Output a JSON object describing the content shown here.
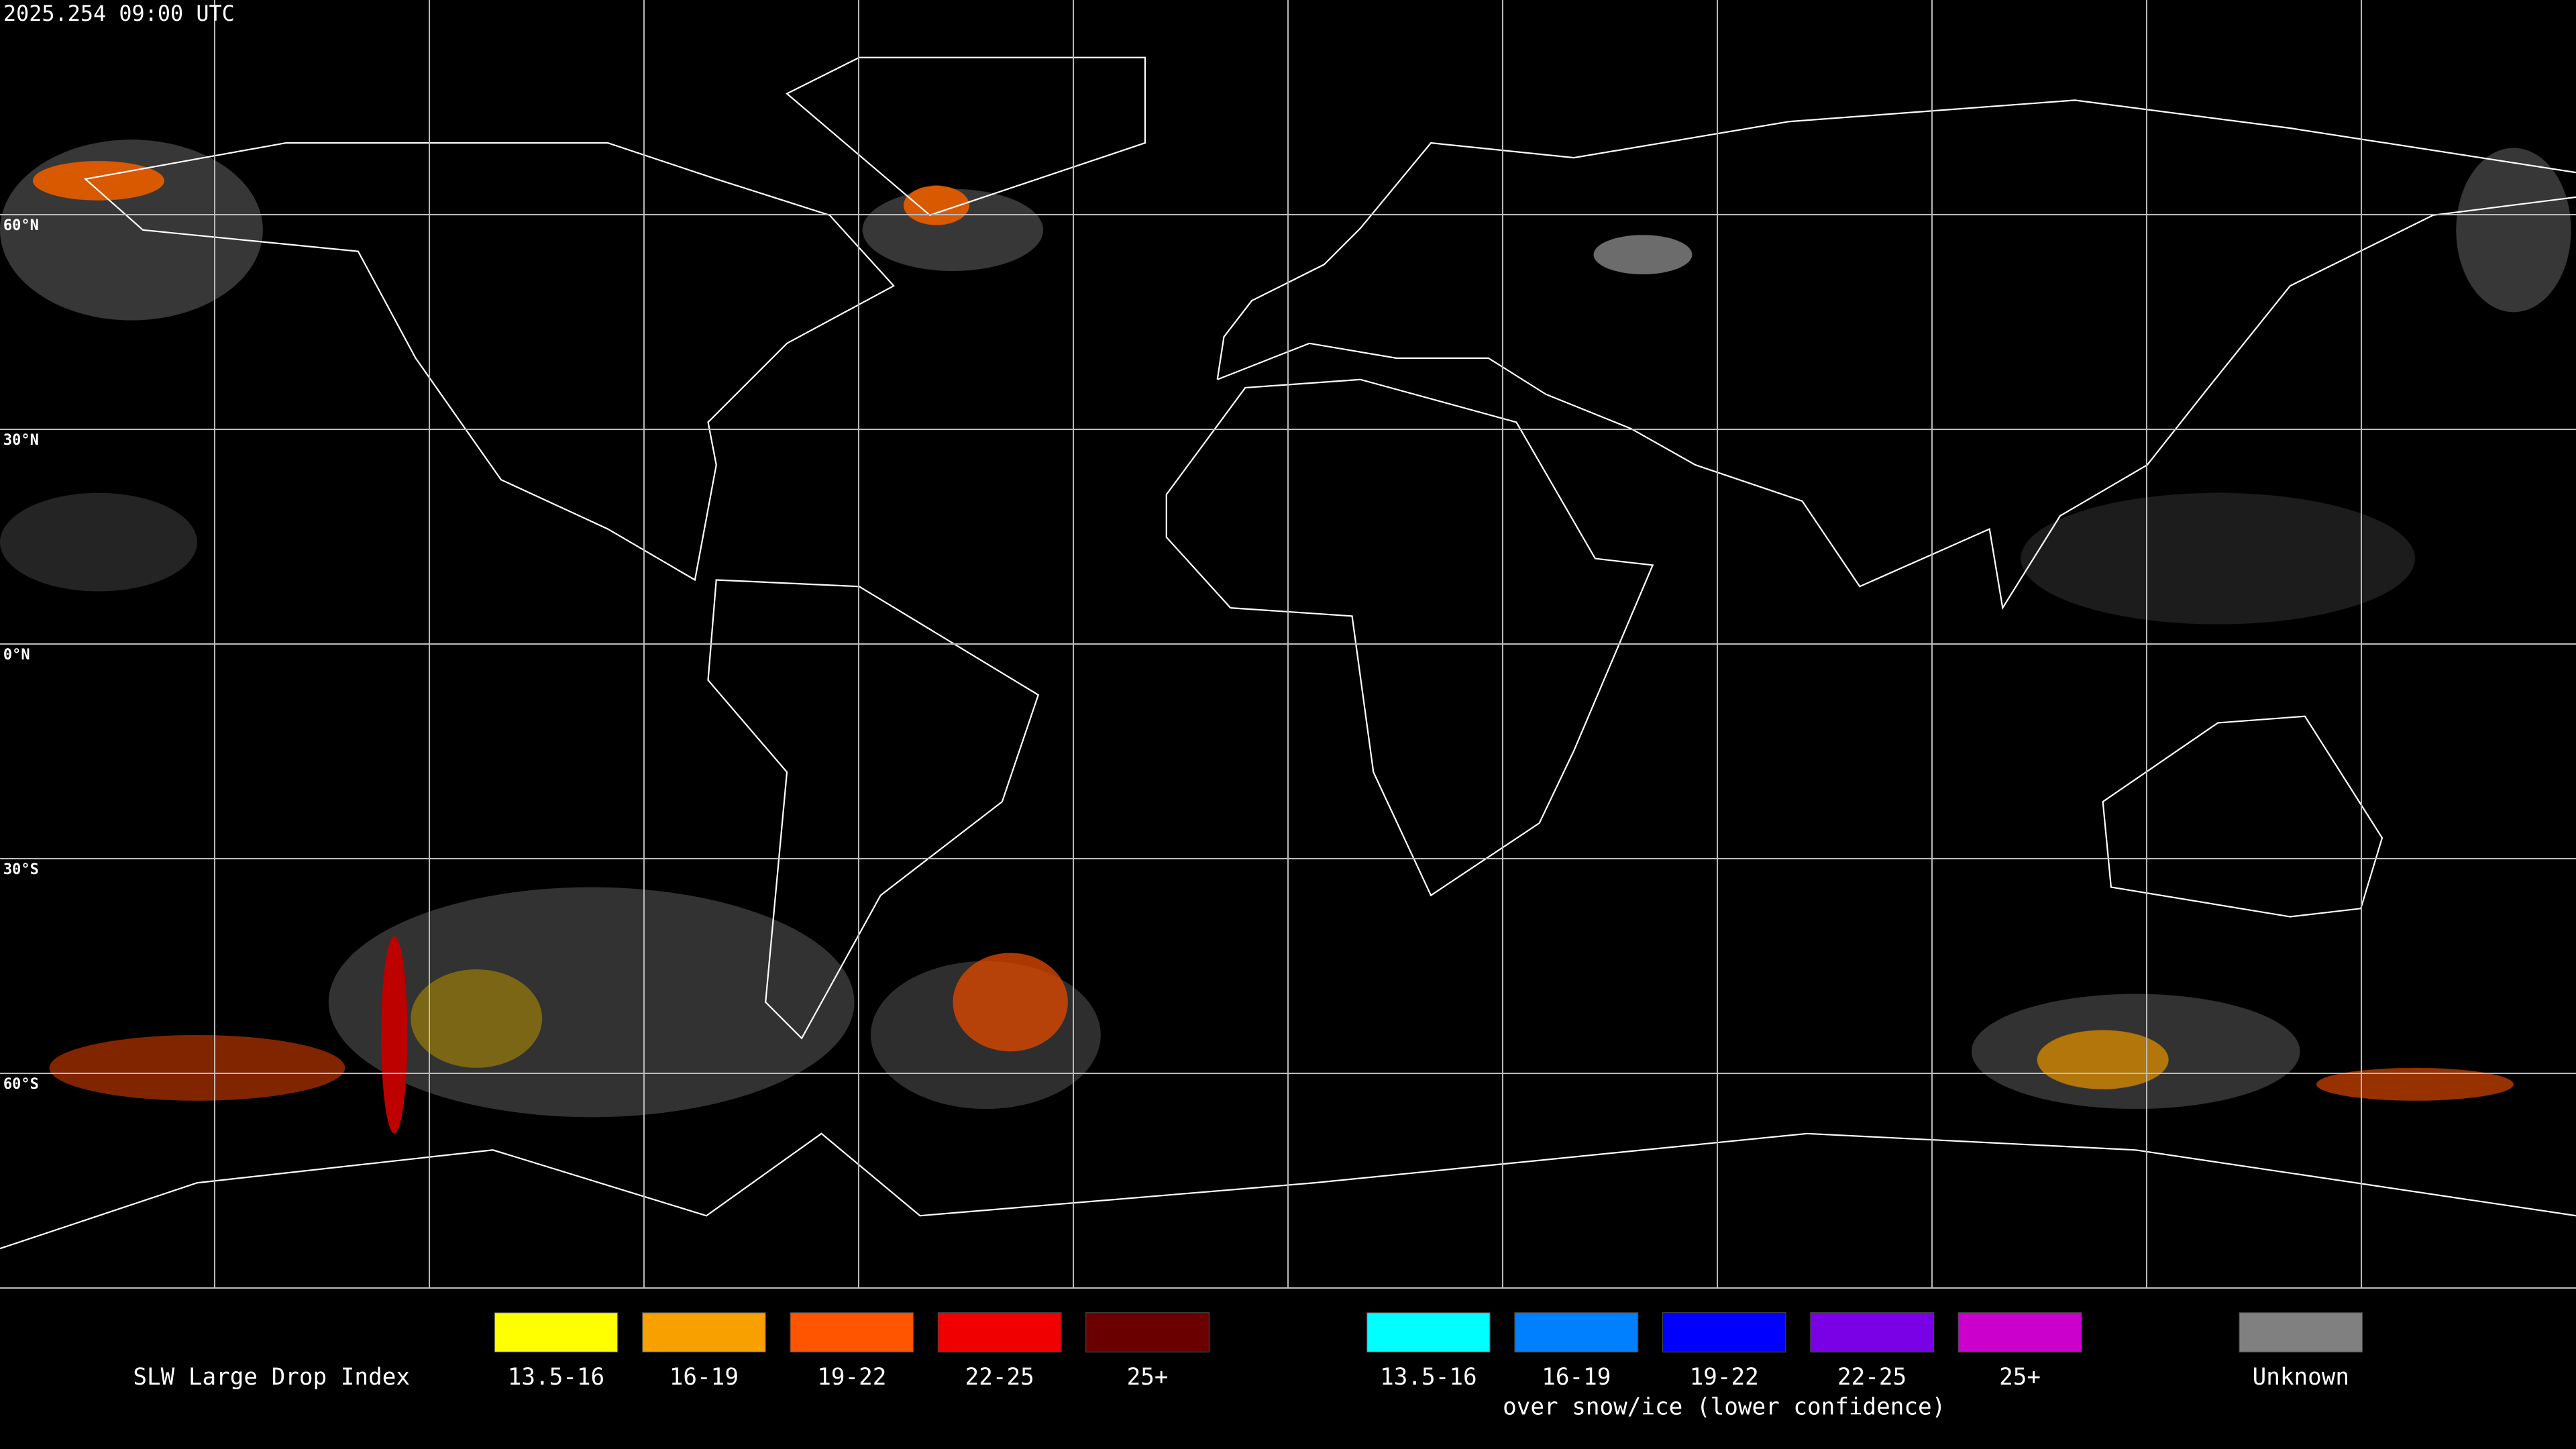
{
  "timestamp": "2025.254 09:00 UTC",
  "latitude_labels": [
    "60°N",
    "30°N",
    "0°N",
    "30°S",
    "60°S"
  ],
  "legend": {
    "title": "SLW Large Drop Index",
    "groups": [
      {
        "items": [
          {
            "label": "13.5-16",
            "color": "#ffff00"
          },
          {
            "label": "16-19",
            "color": "#f8a000"
          },
          {
            "label": "19-22",
            "color": "#ff5400"
          },
          {
            "label": "22-25",
            "color": "#f00000"
          },
          {
            "label": "25+",
            "color": "#6a0000"
          }
        ]
      },
      {
        "items": [
          {
            "label": "13.5-16",
            "color": "#00ffff"
          },
          {
            "label": "16-19",
            "color": "#0080ff"
          },
          {
            "label": "19-22",
            "color": "#0000ff"
          },
          {
            "label": "22-25",
            "color": "#7a00e6"
          },
          {
            "label": "25+",
            "color": "#cc00cc"
          }
        ],
        "caption": "over snow/ice (lower confidence)"
      },
      {
        "items": [
          {
            "label": "Unknown",
            "color": "#808080"
          }
        ]
      }
    ]
  }
}
